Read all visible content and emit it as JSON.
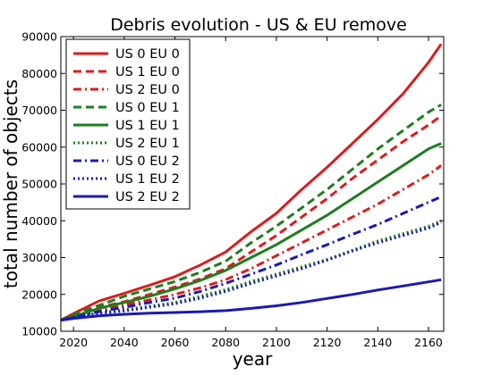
{
  "chart_data": {
    "type": "line",
    "title": "Debris evolution - US & EU remove",
    "xlabel": "year",
    "ylabel": "total number of objects",
    "xlim": [
      2015,
      2166
    ],
    "ylim": [
      10000,
      90000
    ],
    "xticks": [
      2020,
      2040,
      2060,
      2080,
      2100,
      2120,
      2140,
      2160
    ],
    "yticks": [
      10000,
      20000,
      30000,
      40000,
      50000,
      60000,
      70000,
      80000,
      90000
    ],
    "grid": false,
    "legend_position": "top-left",
    "series": [
      {
        "name": "US 0 EU 0",
        "color": "#dd1c1c",
        "dash": "solid",
        "width": 3,
        "x": [
          2015,
          2020,
          2030,
          2040,
          2050,
          2060,
          2070,
          2080,
          2090,
          2100,
          2110,
          2120,
          2130,
          2140,
          2150,
          2160,
          2165
        ],
        "y": [
          13000,
          14800,
          18200,
          20300,
          22500,
          24800,
          28000,
          31500,
          37000,
          42000,
          48500,
          54500,
          61000,
          67500,
          74500,
          83000,
          88000
        ]
      },
      {
        "name": "US 1 EU 0",
        "color": "#dd1c1c",
        "dash": "dashed",
        "width": 3,
        "x": [
          2015,
          2020,
          2030,
          2040,
          2050,
          2060,
          2070,
          2080,
          2090,
          2100,
          2110,
          2120,
          2130,
          2140,
          2150,
          2160,
          2165
        ],
        "y": [
          13000,
          14200,
          16500,
          18000,
          20000,
          22000,
          24200,
          27000,
          31500,
          36000,
          41000,
          46000,
          51500,
          56500,
          61500,
          66000,
          68500
        ]
      },
      {
        "name": "US 2 EU 0",
        "color": "#dd1c1c",
        "dash": "dashdot",
        "width": 3,
        "x": [
          2015,
          2020,
          2030,
          2040,
          2050,
          2060,
          2070,
          2080,
          2090,
          2100,
          2110,
          2120,
          2130,
          2140,
          2150,
          2160,
          2165
        ],
        "y": [
          13000,
          14000,
          15800,
          17200,
          18500,
          20000,
          21800,
          24000,
          27000,
          30500,
          34000,
          37500,
          41000,
          44500,
          48500,
          52500,
          55000
        ]
      },
      {
        "name": "US 0 EU 1",
        "color": "#1e7d1e",
        "dash": "dashed",
        "width": 3,
        "x": [
          2015,
          2020,
          2030,
          2040,
          2050,
          2060,
          2070,
          2080,
          2090,
          2100,
          2110,
          2120,
          2130,
          2140,
          2150,
          2160,
          2165
        ],
        "y": [
          13000,
          14500,
          17000,
          19500,
          21500,
          23500,
          26000,
          29000,
          34000,
          38500,
          43500,
          48500,
          54000,
          59500,
          64500,
          69500,
          71500
        ]
      },
      {
        "name": "US 1 EU 1",
        "color": "#1e7d1e",
        "dash": "solid",
        "width": 3,
        "x": [
          2015,
          2020,
          2030,
          2040,
          2050,
          2060,
          2070,
          2080,
          2090,
          2100,
          2110,
          2120,
          2130,
          2140,
          2150,
          2160,
          2165
        ],
        "y": [
          13000,
          14000,
          16200,
          17800,
          19500,
          21500,
          23800,
          26500,
          30000,
          33500,
          37500,
          41500,
          46000,
          50500,
          55000,
          59500,
          61000
        ]
      },
      {
        "name": "US 2 EU 1",
        "color": "#1e7d1e",
        "dash": "dotted",
        "width": 3,
        "x": [
          2015,
          2020,
          2030,
          2040,
          2050,
          2060,
          2070,
          2080,
          2090,
          2100,
          2110,
          2120,
          2130,
          2140,
          2150,
          2160,
          2165
        ],
        "y": [
          13000,
          13800,
          15000,
          15800,
          16800,
          17800,
          19500,
          21300,
          23500,
          25500,
          27500,
          29500,
          32000,
          34500,
          36500,
          38500,
          40000
        ]
      },
      {
        "name": "US 0 EU 2",
        "color": "#1a1ab0",
        "dash": "dashdot",
        "width": 3,
        "x": [
          2015,
          2020,
          2030,
          2040,
          2050,
          2060,
          2070,
          2080,
          2090,
          2100,
          2110,
          2120,
          2130,
          2140,
          2150,
          2160,
          2165
        ],
        "y": [
          13000,
          13800,
          15300,
          16500,
          17800,
          19000,
          20800,
          23000,
          25500,
          28000,
          30800,
          33500,
          36300,
          39000,
          42000,
          45000,
          46500
        ]
      },
      {
        "name": "US 1 EU 2",
        "color": "#1a1ab0",
        "dash": "dotted",
        "width": 3,
        "x": [
          2015,
          2020,
          2030,
          2040,
          2050,
          2060,
          2070,
          2080,
          2090,
          2100,
          2110,
          2120,
          2130,
          2140,
          2150,
          2160,
          2165
        ],
        "y": [
          13000,
          13700,
          14800,
          15500,
          16500,
          17500,
          19000,
          20800,
          23000,
          25000,
          27000,
          29300,
          31800,
          34000,
          36000,
          38000,
          39500
        ]
      },
      {
        "name": "US 2 EU 2",
        "color": "#1a1ab0",
        "dash": "solid",
        "width": 3,
        "x": [
          2015,
          2020,
          2030,
          2040,
          2050,
          2060,
          2070,
          2080,
          2090,
          2100,
          2110,
          2120,
          2130,
          2140,
          2150,
          2160,
          2165
        ],
        "y": [
          13000,
          13500,
          14200,
          14600,
          14900,
          15100,
          15300,
          15600,
          16200,
          16900,
          17800,
          18900,
          20000,
          21200,
          22300,
          23400,
          24000
        ]
      }
    ]
  }
}
